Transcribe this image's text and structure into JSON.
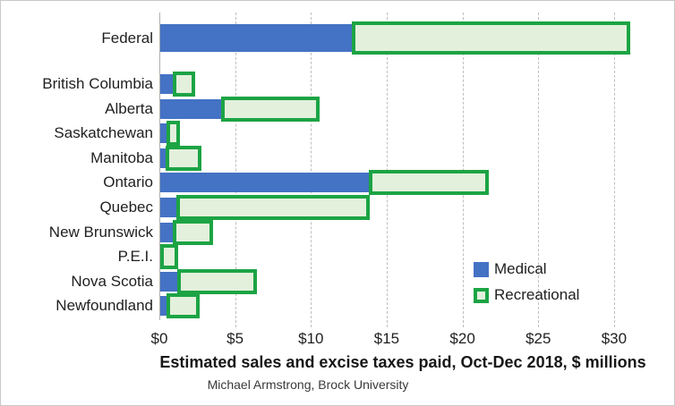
{
  "chart_data": {
    "type": "bar",
    "orientation": "horizontal",
    "stacked": true,
    "title": "Estimated sales and excise taxes paid, Oct-Dec 2018, $ millions",
    "subtitle": "Michael Armstrong, Brock University",
    "categories": [
      "Federal",
      "British Columbia",
      "Alberta",
      "Saskatchewan",
      "Manitoba",
      "Ontario",
      "Quebec",
      "New Brunswick",
      "P.E.I.",
      "Nova Scotia",
      "Newfoundland"
    ],
    "series": [
      {
        "name": "Medical",
        "style": "solid",
        "color": "#4472C4",
        "values": [
          12.7,
          0.9,
          4.1,
          0.5,
          0.4,
          13.8,
          1.1,
          0.9,
          0.0,
          1.2,
          0.5
        ]
      },
      {
        "name": "Recreational",
        "style": "outlined",
        "border_color": "#1CA444",
        "fill_color": "#E3F0DC",
        "values": [
          18.3,
          1.4,
          6.4,
          0.8,
          2.3,
          7.9,
          12.7,
          2.6,
          1.2,
          5.2,
          2.1
        ]
      }
    ],
    "x_axis": {
      "tick_labels": [
        "$0",
        "$5",
        "$10",
        "$15",
        "$20",
        "$25",
        "$30"
      ],
      "tick_values": [
        0,
        5,
        10,
        15,
        20,
        25,
        30
      ],
      "min": 0,
      "max": 33.8
    },
    "grid": "dashed-vertical",
    "gridline_color": "#BFBFBF",
    "legend": {
      "position": "right-middle",
      "entries": [
        "Medical",
        "Recreational"
      ]
    }
  }
}
